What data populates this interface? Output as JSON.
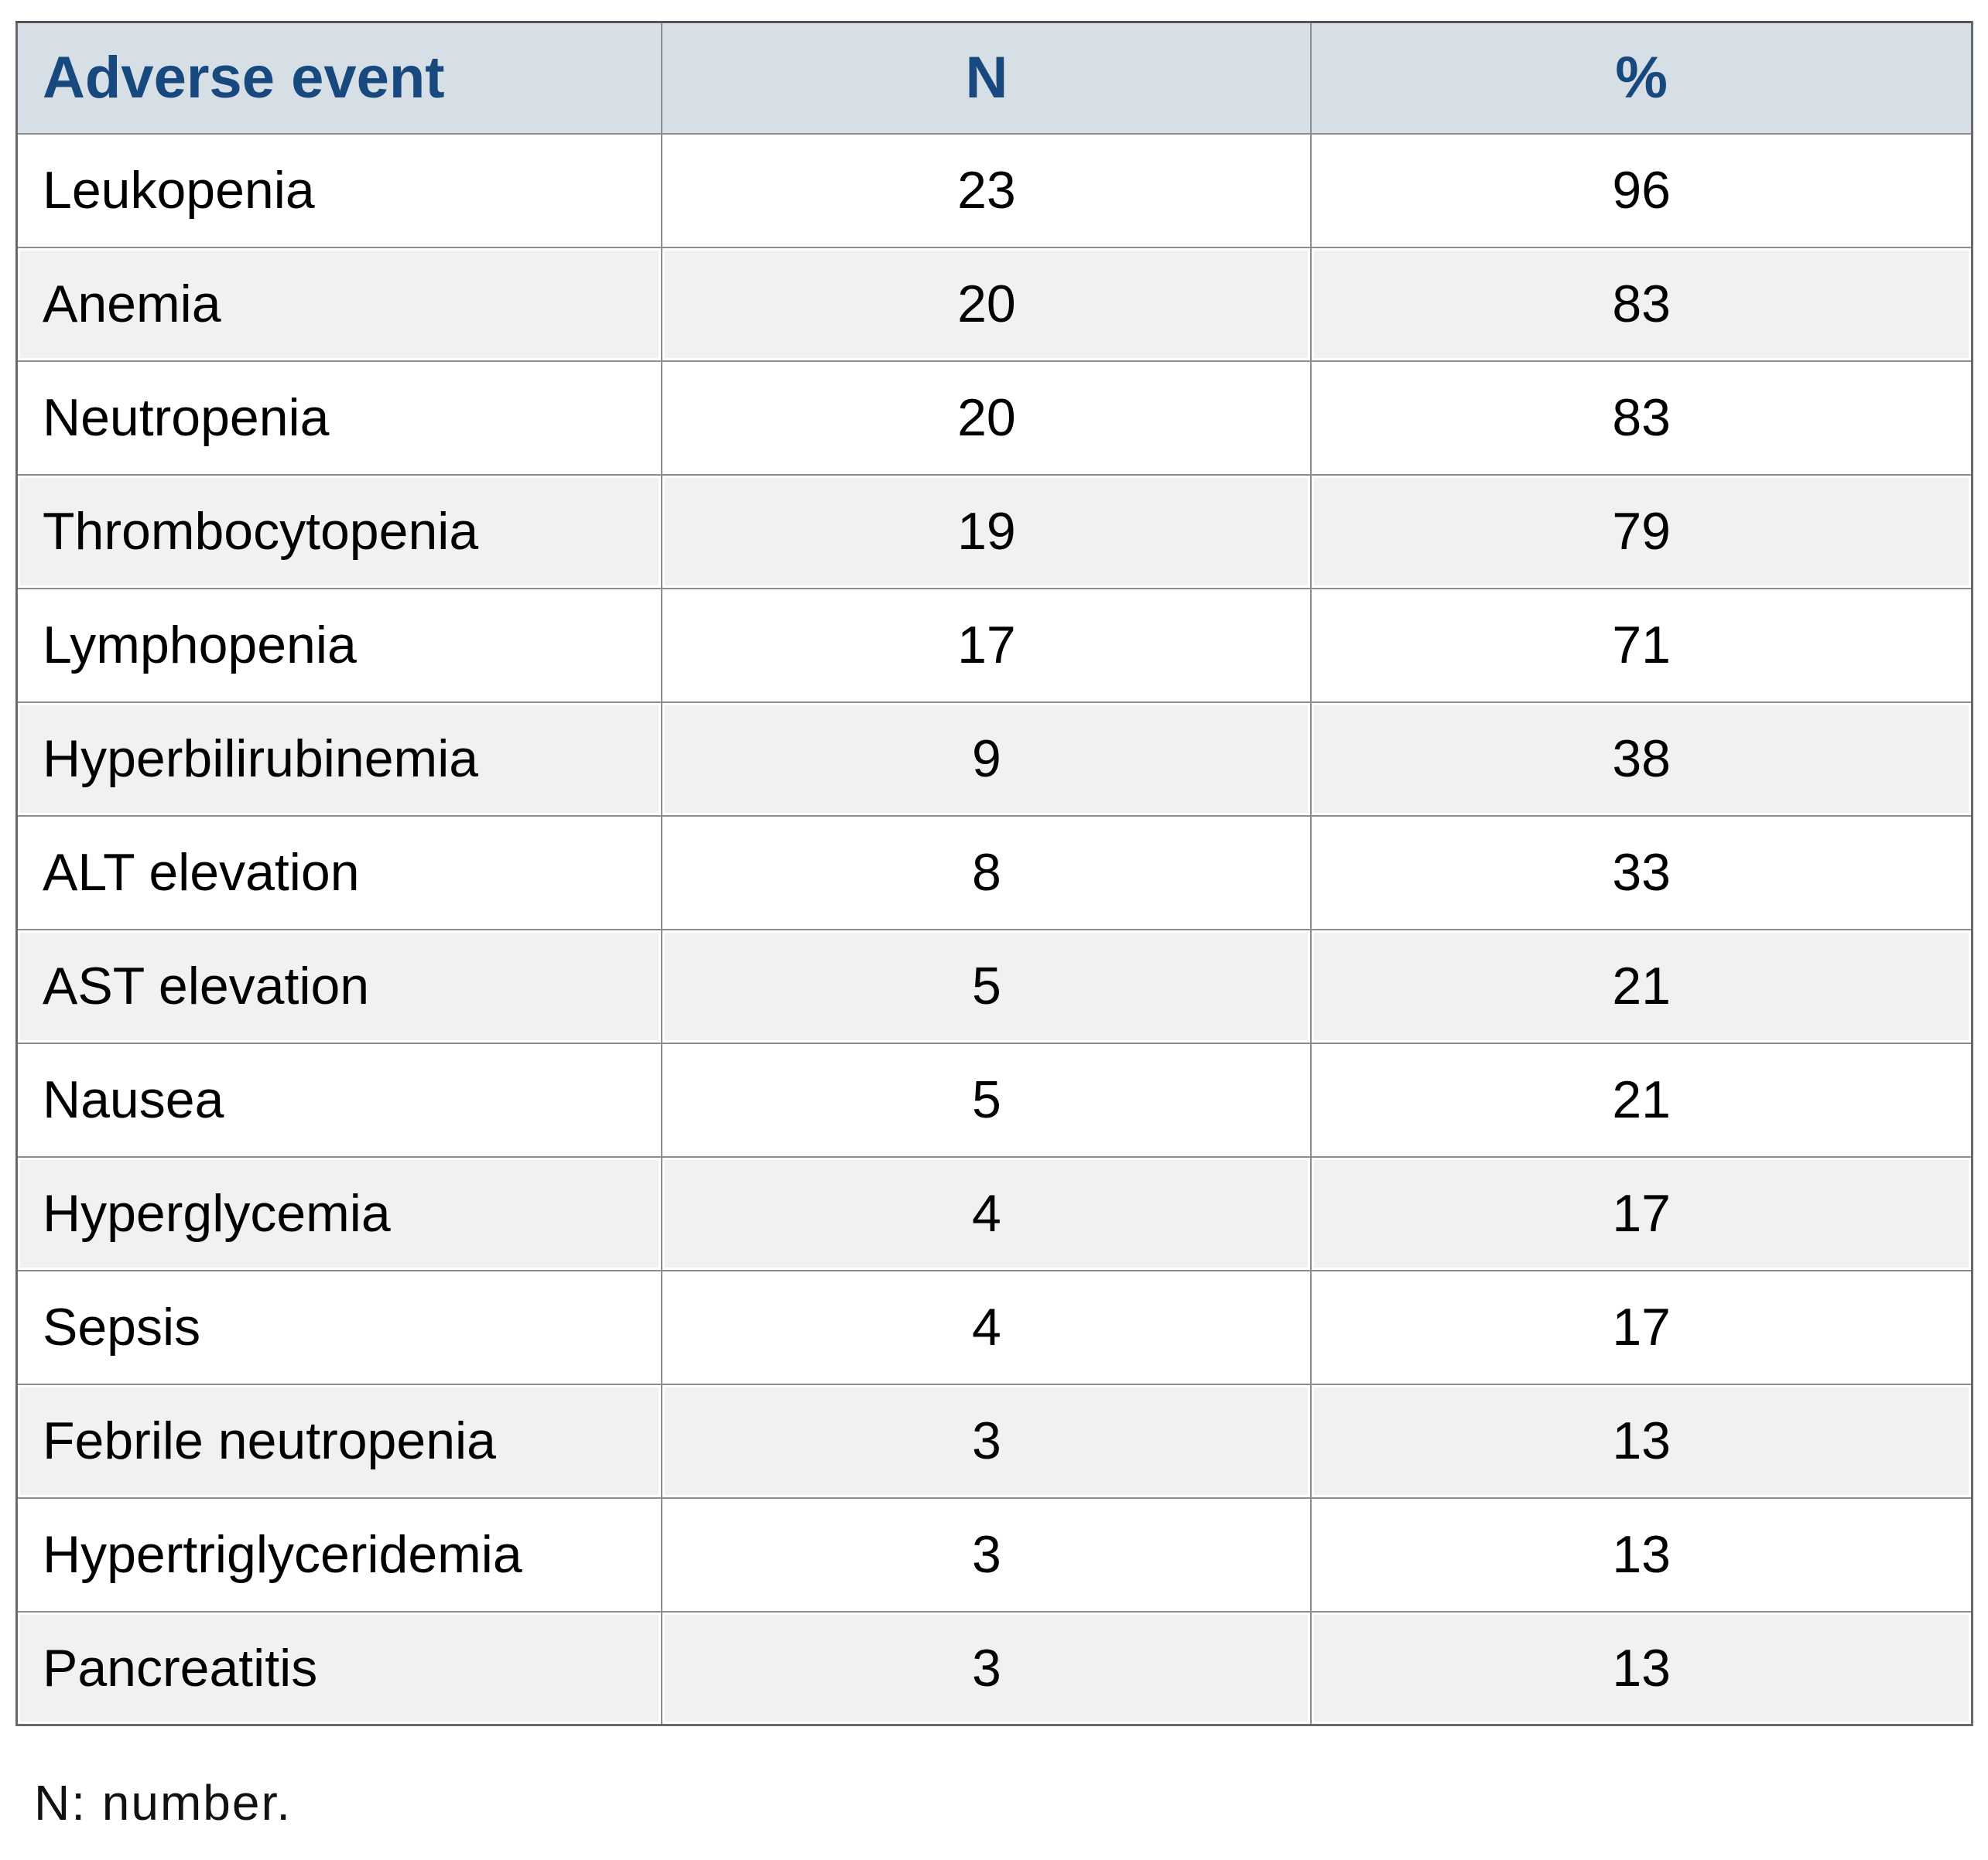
{
  "table": {
    "headers": [
      "Adverse event",
      "N",
      "%"
    ],
    "rows": [
      [
        "Leukopenia",
        "23",
        "96"
      ],
      [
        "Anemia",
        "20",
        "83"
      ],
      [
        "Neutropenia",
        "20",
        "83"
      ],
      [
        "Thrombocytopenia",
        "19",
        "79"
      ],
      [
        "Lymphopenia",
        "17",
        "71"
      ],
      [
        "Hyperbilirubinemia",
        "9",
        "38"
      ],
      [
        "ALT elevation",
        "8",
        "33"
      ],
      [
        "AST elevation",
        "5",
        "21"
      ],
      [
        "Nausea",
        "5",
        "21"
      ],
      [
        "Hyperglycemia",
        "4",
        "17"
      ],
      [
        "Sepsis",
        "4",
        "17"
      ],
      [
        "Febrile neutropenia",
        "3",
        "13"
      ],
      [
        "Hypertriglyceridemia",
        "3",
        "13"
      ],
      [
        "Pancreatitis",
        "3",
        "13"
      ]
    ]
  },
  "footnote": "N: number.",
  "colors": {
    "header_bg": "#d6dee6",
    "header_text": "#17497e",
    "row_alt_bg": "#f0f1f2",
    "border": "#8b8d90"
  }
}
